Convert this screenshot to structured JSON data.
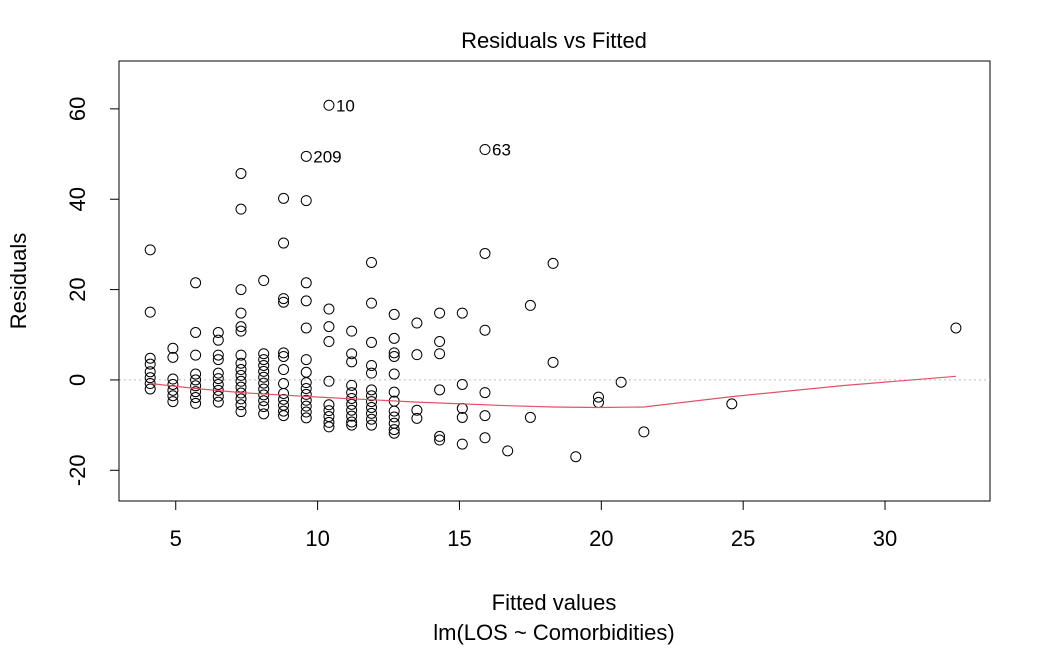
{
  "chart_data": {
    "type": "scatter",
    "title": "Residuals vs Fitted",
    "xlabel": "Fitted values",
    "sublabel": "lm(LOS ~ Comorbidities)",
    "ylabel": "Residuals",
    "xlim": [
      3.0,
      33.7
    ],
    "ylim": [
      -26.8,
      70.6
    ],
    "x_ticks": [
      5,
      10,
      15,
      20,
      25,
      30
    ],
    "y_ticks": [
      -20,
      0,
      20,
      40,
      60
    ],
    "grid": false,
    "reference_line_y": 0,
    "colors": {
      "points": "#000000",
      "smooth": "#DF536B",
      "refline": "#BEBEBE"
    },
    "points": [
      [
        4.1,
        28.8
      ],
      [
        4.1,
        15
      ],
      [
        4.1,
        4.8
      ],
      [
        4.1,
        3.5
      ],
      [
        4.1,
        1.8
      ],
      [
        4.1,
        0.5
      ],
      [
        4.1,
        -0.8
      ],
      [
        4.1,
        -2
      ],
      [
        4.9,
        7
      ],
      [
        4.9,
        5
      ],
      [
        4.9,
        0.2
      ],
      [
        4.9,
        -1
      ],
      [
        4.9,
        -2.3
      ],
      [
        4.9,
        -3.5
      ],
      [
        4.9,
        -4.8
      ],
      [
        5.7,
        21.5
      ],
      [
        5.7,
        10.5
      ],
      [
        5.7,
        5.5
      ],
      [
        5.7,
        1.3
      ],
      [
        5.7,
        0
      ],
      [
        5.7,
        -1.3
      ],
      [
        5.7,
        -2.6
      ],
      [
        5.7,
        -3.9
      ],
      [
        5.7,
        -5.2
      ],
      [
        6.5,
        10.5
      ],
      [
        6.5,
        8.8
      ],
      [
        6.5,
        5.5
      ],
      [
        6.5,
        4.5
      ],
      [
        6.5,
        1.5
      ],
      [
        6.5,
        0.3
      ],
      [
        6.5,
        -1
      ],
      [
        6.5,
        -2.3
      ],
      [
        6.5,
        -3.6
      ],
      [
        6.5,
        -4.9
      ],
      [
        7.3,
        45.7
      ],
      [
        7.3,
        37.8
      ],
      [
        7.3,
        20
      ],
      [
        7.3,
        14.8
      ],
      [
        7.3,
        11.8
      ],
      [
        7.3,
        10.8
      ],
      [
        7.3,
        5.5
      ],
      [
        7.3,
        3.7
      ],
      [
        7.3,
        2.3
      ],
      [
        7.3,
        1
      ],
      [
        7.3,
        -0.3
      ],
      [
        7.3,
        -1.6
      ],
      [
        7.3,
        -2.9
      ],
      [
        7.3,
        -4.2
      ],
      [
        7.3,
        -5.5
      ],
      [
        7.3,
        -7
      ],
      [
        8.1,
        22
      ],
      [
        8.1,
        5.8
      ],
      [
        8.1,
        4.5
      ],
      [
        8.1,
        3.2
      ],
      [
        8.1,
        1.9
      ],
      [
        8.1,
        0.6
      ],
      [
        8.1,
        -0.7
      ],
      [
        8.1,
        -2
      ],
      [
        8.1,
        -3.3
      ],
      [
        8.1,
        -4.6
      ],
      [
        8.1,
        -5.9
      ],
      [
        8.1,
        -7.5
      ],
      [
        8.8,
        40.2
      ],
      [
        8.8,
        30.3
      ],
      [
        8.8,
        18
      ],
      [
        8.8,
        17.2
      ],
      [
        8.8,
        6
      ],
      [
        8.8,
        5.2
      ],
      [
        8.8,
        2.3
      ],
      [
        8.8,
        -0.8
      ],
      [
        8.8,
        -3
      ],
      [
        8.8,
        -4.3
      ],
      [
        8.8,
        -5.6
      ],
      [
        8.8,
        -6.9
      ],
      [
        8.8,
        -7.9
      ],
      [
        9.6,
        49.5
      ],
      [
        9.6,
        39.7
      ],
      [
        9.6,
        21.5
      ],
      [
        9.6,
        17.5
      ],
      [
        9.6,
        11.5
      ],
      [
        9.6,
        4.5
      ],
      [
        9.6,
        1.7
      ],
      [
        9.6,
        -0.6
      ],
      [
        9.6,
        -1.9
      ],
      [
        9.6,
        -3.2
      ],
      [
        9.6,
        -4.5
      ],
      [
        9.6,
        -5.8
      ],
      [
        9.6,
        -7.1
      ],
      [
        9.6,
        -8.4
      ],
      [
        10.4,
        60.8
      ],
      [
        10.4,
        15.7
      ],
      [
        10.4,
        11.8
      ],
      [
        10.4,
        8.5
      ],
      [
        10.4,
        -0.3
      ],
      [
        10.4,
        -5.5
      ],
      [
        10.4,
        -6.8
      ],
      [
        10.4,
        -8.1
      ],
      [
        10.4,
        -9.4
      ],
      [
        10.4,
        -10.4
      ],
      [
        11.2,
        10.8
      ],
      [
        11.2,
        5.8
      ],
      [
        11.2,
        4
      ],
      [
        11.2,
        -1.2
      ],
      [
        11.2,
        -2.8
      ],
      [
        11.2,
        -4.1
      ],
      [
        11.2,
        -5.4
      ],
      [
        11.2,
        -6.7
      ],
      [
        11.2,
        -8
      ],
      [
        11.2,
        -9.3
      ],
      [
        11.2,
        -10
      ],
      [
        11.9,
        26
      ],
      [
        11.9,
        17
      ],
      [
        11.9,
        8.3
      ],
      [
        11.9,
        3.2
      ],
      [
        11.9,
        1.5
      ],
      [
        11.9,
        -2.2
      ],
      [
        11.9,
        -3.5
      ],
      [
        11.9,
        -4.8
      ],
      [
        11.9,
        -6.1
      ],
      [
        11.9,
        -7.4
      ],
      [
        11.9,
        -8.7
      ],
      [
        11.9,
        -10
      ],
      [
        12.7,
        14.5
      ],
      [
        12.7,
        9.2
      ],
      [
        12.7,
        6
      ],
      [
        12.7,
        5.2
      ],
      [
        12.7,
        1.3
      ],
      [
        12.7,
        -2.7
      ],
      [
        12.7,
        -4.7
      ],
      [
        12.7,
        -6.9
      ],
      [
        12.7,
        -8.2
      ],
      [
        12.7,
        -9.6
      ],
      [
        12.7,
        -11
      ],
      [
        12.7,
        -11.8
      ],
      [
        13.5,
        12.6
      ],
      [
        13.5,
        5.6
      ],
      [
        13.5,
        -6.7
      ],
      [
        13.5,
        -8.5
      ],
      [
        14.3,
        14.8
      ],
      [
        14.3,
        8.5
      ],
      [
        14.3,
        5.8
      ],
      [
        14.3,
        -2.2
      ],
      [
        14.3,
        -12.5
      ],
      [
        14.3,
        -13.3
      ],
      [
        15.1,
        14.8
      ],
      [
        15.1,
        -1
      ],
      [
        15.1,
        -6.3
      ],
      [
        15.1,
        -8.3
      ],
      [
        15.1,
        -14.2
      ],
      [
        15.9,
        51
      ],
      [
        15.9,
        28
      ],
      [
        15.9,
        11
      ],
      [
        15.9,
        -2.8
      ],
      [
        15.9,
        -7.9
      ],
      [
        15.9,
        -12.8
      ],
      [
        16.7,
        -15.7
      ],
      [
        17.5,
        16.5
      ],
      [
        17.5,
        -8.3
      ],
      [
        18.3,
        25.8
      ],
      [
        18.3,
        3.9
      ],
      [
        19.1,
        -17
      ],
      [
        19.9,
        -3.8
      ],
      [
        19.9,
        -5
      ],
      [
        20.7,
        -0.5
      ],
      [
        21.5,
        -11.5
      ],
      [
        24.6,
        -5.3
      ],
      [
        32.5,
        11.5
      ]
    ],
    "smooth": [
      [
        4.1,
        -0.8
      ],
      [
        5.7,
        -1.9
      ],
      [
        7.3,
        -2.8
      ],
      [
        8.9,
        -3.4
      ],
      [
        10.4,
        -3.9
      ],
      [
        11.9,
        -4.4
      ],
      [
        13.5,
        -4.9
      ],
      [
        15.1,
        -5.3
      ],
      [
        16.7,
        -5.7
      ],
      [
        18.3,
        -6
      ],
      [
        19.9,
        -6.1
      ],
      [
        21.5,
        -6
      ],
      [
        24.6,
        -3.7
      ],
      [
        28.6,
        -1.2
      ],
      [
        32.5,
        0.8
      ]
    ],
    "labels": [
      {
        "text": "10",
        "x": 10.4,
        "y": 60.8
      },
      {
        "text": "209",
        "x": 9.6,
        "y": 49.5
      },
      {
        "text": "63",
        "x": 15.9,
        "y": 51
      }
    ]
  }
}
